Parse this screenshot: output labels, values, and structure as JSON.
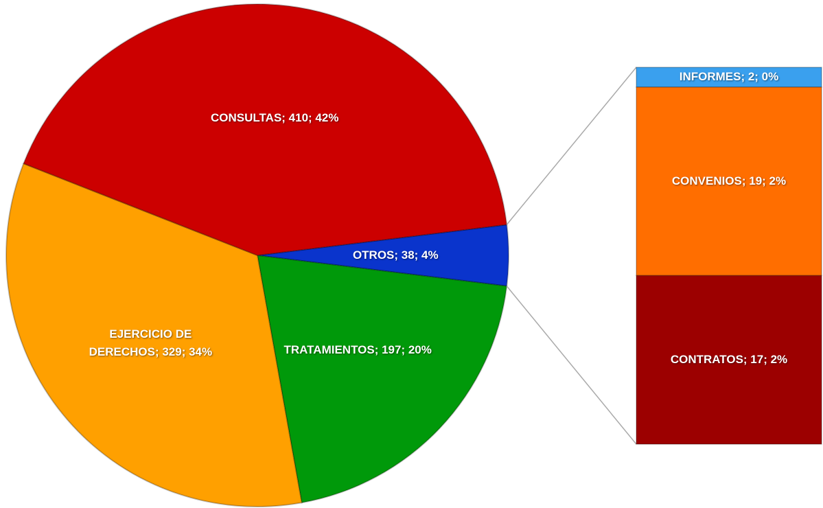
{
  "chart_data": {
    "type": "pie-of-bar",
    "values": [
      38,
      197,
      329,
      410
    ],
    "value_labels": [
      "OTROS; 38; 4%",
      "TRATAMIENTOS; 197; 20%",
      "EJERCICIO DE DERECHOS; 329; 34%",
      "CONSULTAS; 410; 42%"
    ],
    "colors": [
      "#0a34cc",
      "#00990a",
      "#ffa000",
      "#cc0000"
    ],
    "bar": {
      "values": [
        2,
        19,
        17
      ],
      "value_labels": [
        "INFORMES; 2; 0%",
        "CONVENIOS; 19; 2%",
        "CONTRATOS; 17; 2%"
      ],
      "colors": [
        "#3aa0ee",
        "#ff6e00",
        "#9c0000"
      ]
    }
  }
}
